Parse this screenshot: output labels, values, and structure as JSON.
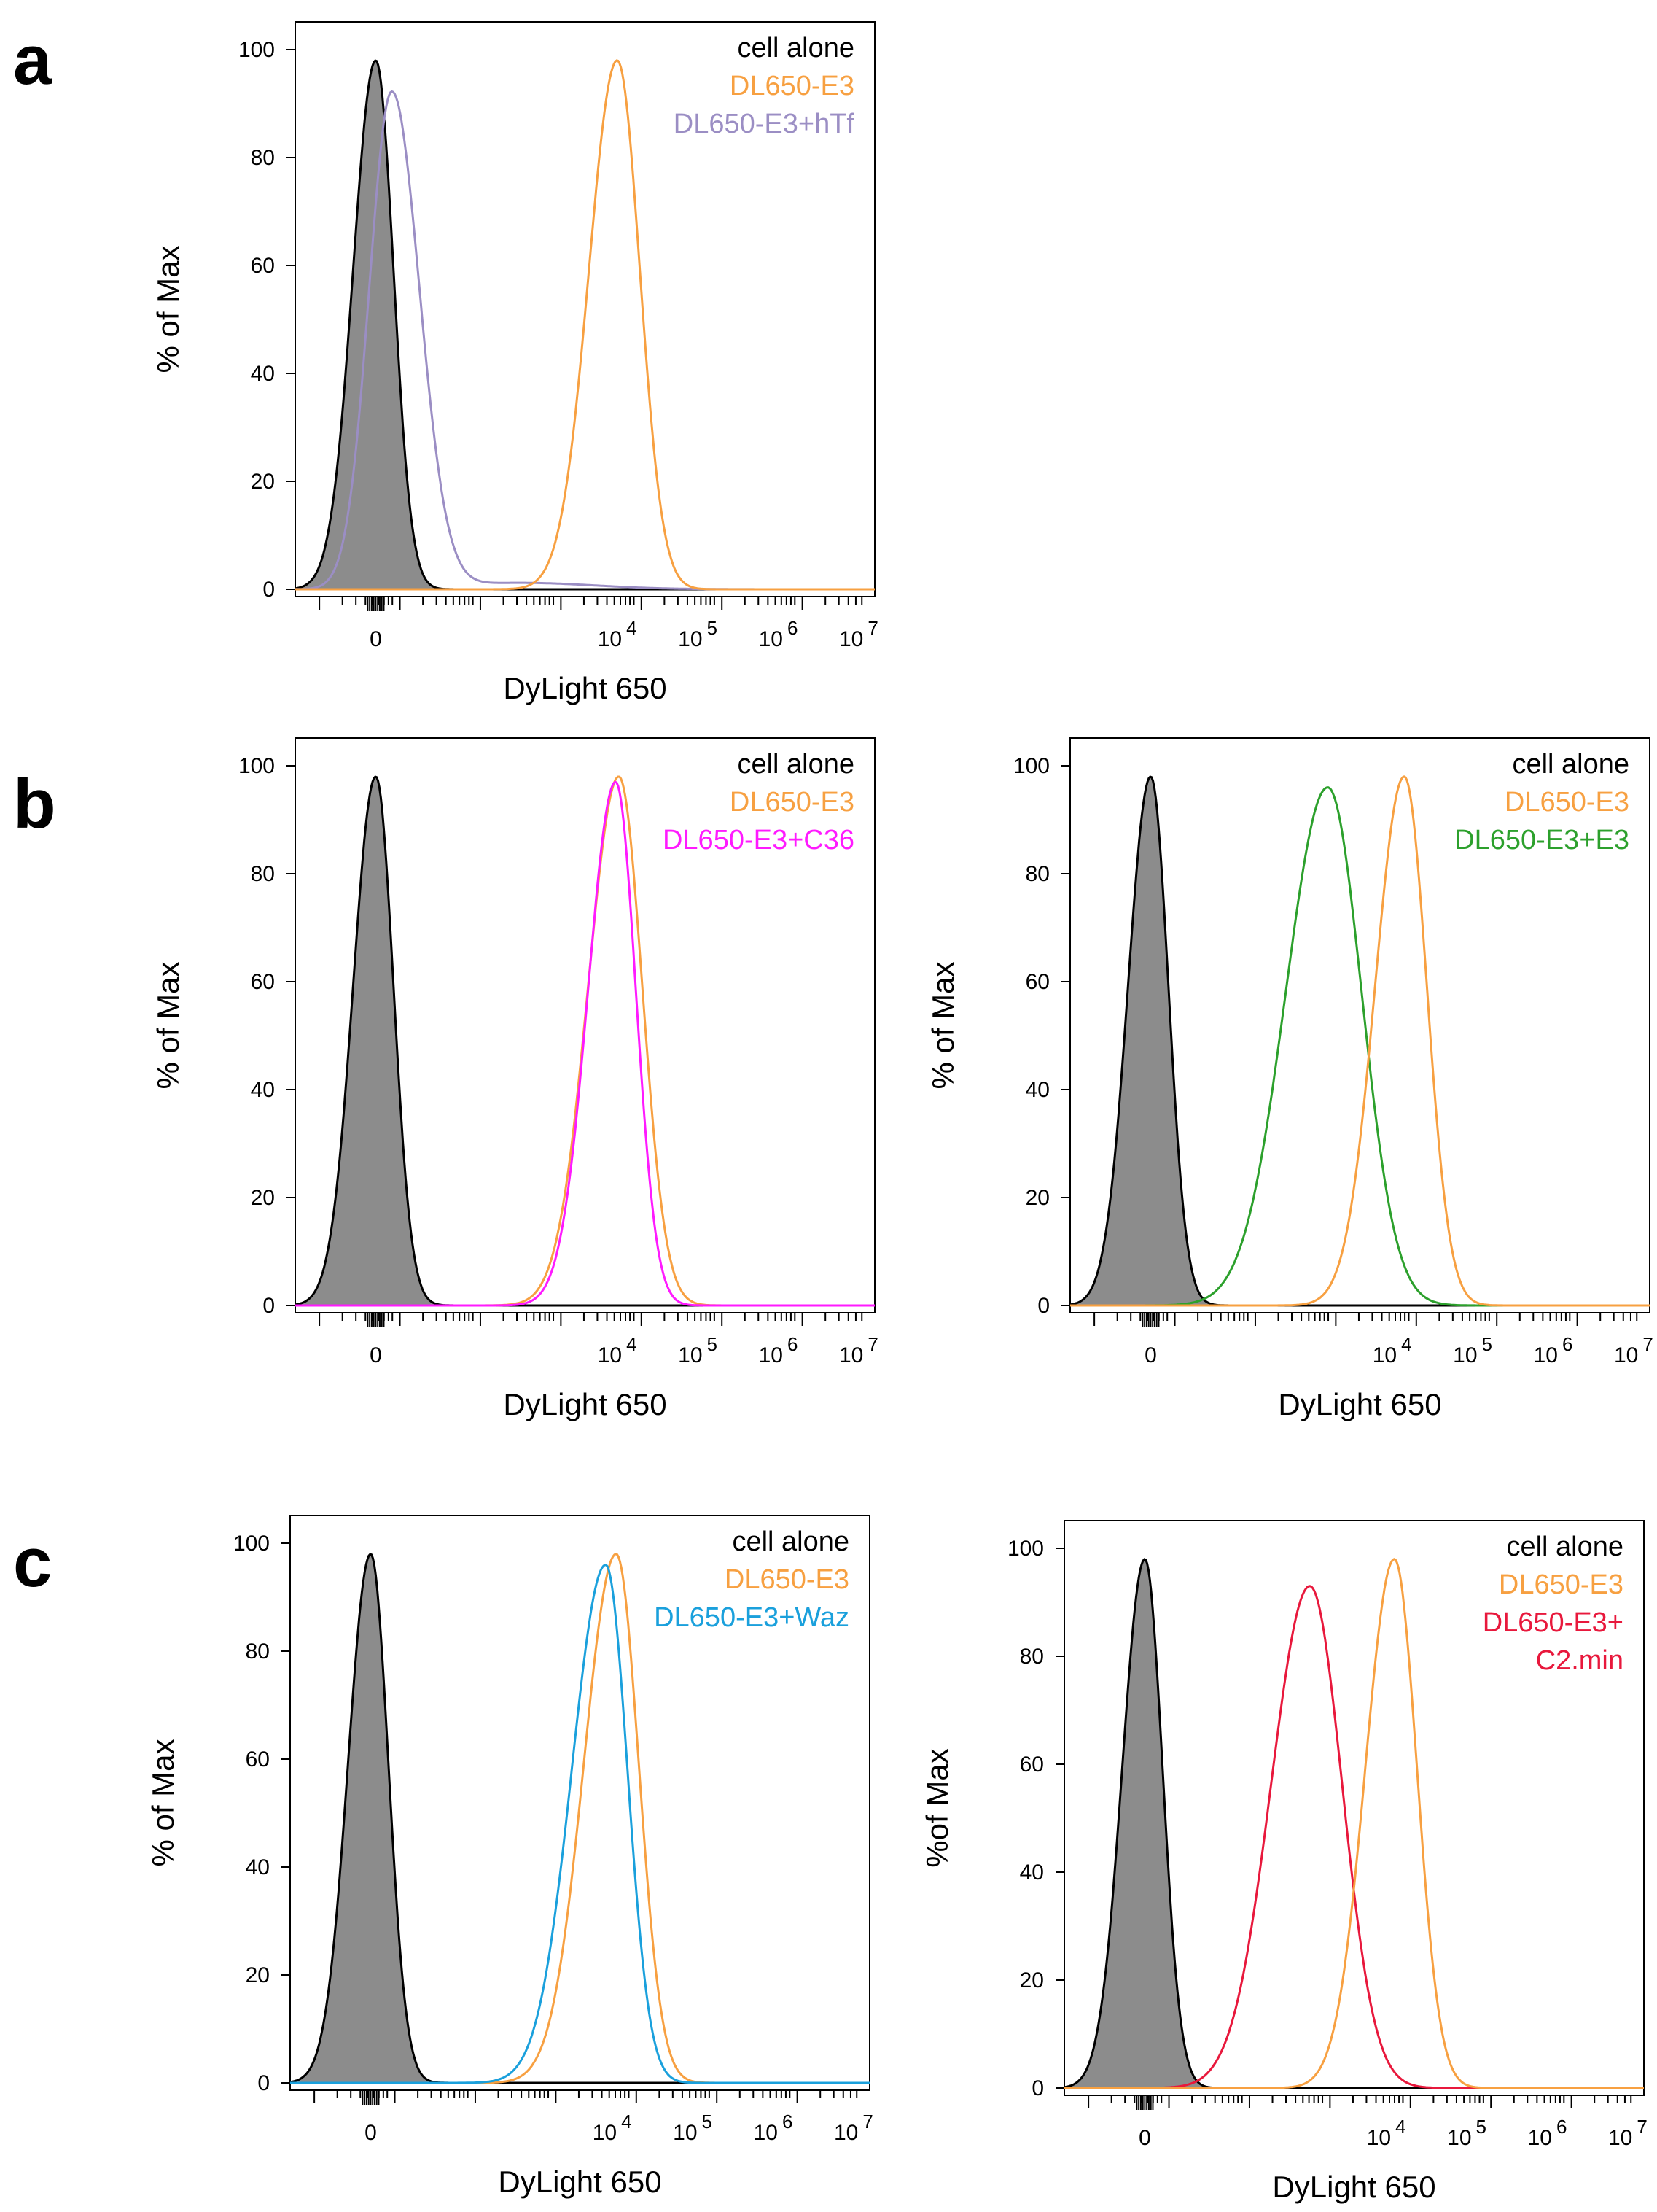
{
  "panel_letters": [
    "a",
    "b",
    "c"
  ],
  "colors": {
    "cell_alone_fill": "#8c8c8c",
    "cell_alone_line": "#000000",
    "dl650_e3": "#f7a041",
    "hTf": "#9b8ec4",
    "C36": "#ff1aff",
    "E3": "#2ca02c",
    "Waz": "#1aa0dc",
    "C2min": "#e8183c"
  },
  "chart_data": [
    {
      "id": "a",
      "type": "area",
      "xlabel": "DyLight 650",
      "ylabel": "% of Max",
      "ylim": [
        0,
        100
      ],
      "yticks": [
        "0",
        "20",
        "40",
        "60",
        "80",
        "100"
      ],
      "xticks": [
        {
          "base": "0",
          "exp": ""
        },
        {
          "base": "10",
          "exp": "4"
        },
        {
          "base": "10",
          "exp": "5"
        },
        {
          "base": "10",
          "exp": "6"
        },
        {
          "base": "10",
          "exp": "7"
        }
      ],
      "legend": [
        {
          "text": "cell alone",
          "color": "#000000"
        },
        {
          "text": "DL650-E3",
          "color": "#f7a041"
        },
        {
          "text": "DL650-E3+hTf",
          "color": "#9b8ec4"
        }
      ],
      "series": [
        {
          "name": "cell alone",
          "filled": true,
          "color": "#000000",
          "peaks": [
            {
              "x": 1.0,
              "h": 98,
              "sl": 0.28,
              "sr": 0.22
            }
          ]
        },
        {
          "name": "DL650-E3+hTf",
          "filled": false,
          "color": "#9b8ec4",
          "tail": 1.5,
          "peaks": [
            {
              "x": 1.2,
              "h": 92,
              "sl": 0.28,
              "sr": 0.34
            }
          ]
        },
        {
          "name": "DL650-E3",
          "filled": false,
          "color": "#f7a041",
          "peaks": [
            {
              "x": 4.0,
              "h": 98,
              "sl": 0.35,
              "sr": 0.28
            }
          ]
        }
      ]
    },
    {
      "id": "b1",
      "type": "area",
      "xlabel": "DyLight 650",
      "ylabel": "% of Max",
      "ylim": [
        0,
        100
      ],
      "yticks": [
        "0",
        "20",
        "40",
        "60",
        "80",
        "100"
      ],
      "xticks": [
        {
          "base": "0",
          "exp": ""
        },
        {
          "base": "10",
          "exp": "4"
        },
        {
          "base": "10",
          "exp": "5"
        },
        {
          "base": "10",
          "exp": "6"
        },
        {
          "base": "10",
          "exp": "7"
        }
      ],
      "legend": [
        {
          "text": "cell alone",
          "color": "#000000"
        },
        {
          "text": "DL650-E3",
          "color": "#f7a041"
        },
        {
          "text": "DL650-E3+C36",
          "color": "#ff1aff"
        }
      ],
      "series": [
        {
          "name": "cell alone",
          "filled": true,
          "color": "#000000",
          "peaks": [
            {
              "x": 1.0,
              "h": 98,
              "sl": 0.28,
              "sr": 0.22
            }
          ]
        },
        {
          "name": "DL650-E3",
          "filled": false,
          "color": "#f7a041",
          "peaks": [
            {
              "x": 4.02,
              "h": 98,
              "sl": 0.38,
              "sr": 0.29
            }
          ]
        },
        {
          "name": "DL650-E3+C36",
          "filled": false,
          "color": "#ff1aff",
          "peaks": [
            {
              "x": 3.98,
              "h": 97,
              "sl": 0.34,
              "sr": 0.25
            }
          ]
        }
      ]
    },
    {
      "id": "b2",
      "type": "area",
      "xlabel": "DyLight 650",
      "ylabel": "% of Max",
      "ylim": [
        0,
        100
      ],
      "yticks": [
        "0",
        "20",
        "40",
        "60",
        "80",
        "100"
      ],
      "xticks": [
        {
          "base": "0",
          "exp": ""
        },
        {
          "base": "10",
          "exp": "4"
        },
        {
          "base": "10",
          "exp": "5"
        },
        {
          "base": "10",
          "exp": "6"
        },
        {
          "base": "10",
          "exp": "7"
        }
      ],
      "legend": [
        {
          "text": "cell alone",
          "color": "#000000"
        },
        {
          "text": "DL650-E3",
          "color": "#f7a041"
        },
        {
          "text": "DL650-E3+E3",
          "color": "#2ca02c"
        }
      ],
      "series": [
        {
          "name": "cell alone",
          "filled": true,
          "color": "#000000",
          "peaks": [
            {
              "x": 1.0,
              "h": 98,
              "sl": 0.28,
              "sr": 0.22
            }
          ]
        },
        {
          "name": "DL650-E3+E3",
          "filled": false,
          "color": "#2ca02c",
          "peaks": [
            {
              "x": 3.2,
              "h": 96,
              "sl": 0.52,
              "sr": 0.42
            }
          ]
        },
        {
          "name": "DL650-E3",
          "filled": false,
          "color": "#f7a041",
          "peaks": [
            {
              "x": 4.15,
              "h": 98,
              "sl": 0.36,
              "sr": 0.28
            }
          ]
        }
      ]
    },
    {
      "id": "c1",
      "type": "area",
      "xlabel": "DyLight 650",
      "ylabel": "% of Max",
      "ylim": [
        0,
        100
      ],
      "yticks": [
        "0",
        "20",
        "40",
        "60",
        "80",
        "100"
      ],
      "xticks": [
        {
          "base": "0",
          "exp": ""
        },
        {
          "base": "10",
          "exp": "4"
        },
        {
          "base": "10",
          "exp": "5"
        },
        {
          "base": "10",
          "exp": "6"
        },
        {
          "base": "10",
          "exp": "7"
        }
      ],
      "legend": [
        {
          "text": "cell alone",
          "color": "#000000"
        },
        {
          "text": "DL650-E3",
          "color": "#f7a041"
        },
        {
          "text": "DL650-E3+Waz",
          "color": "#1aa0dc"
        }
      ],
      "series": [
        {
          "name": "cell alone",
          "filled": true,
          "color": "#000000",
          "peaks": [
            {
              "x": 1.0,
              "h": 98,
              "sl": 0.28,
              "sr": 0.22
            }
          ]
        },
        {
          "name": "DL650-E3",
          "filled": false,
          "color": "#f7a041",
          "peaks": [
            {
              "x": 4.05,
              "h": 98,
              "sl": 0.4,
              "sr": 0.28
            }
          ]
        },
        {
          "name": "DL650-E3+Waz",
          "filled": false,
          "color": "#1aa0dc",
          "peaks": [
            {
              "x": 3.92,
              "h": 96,
              "sl": 0.42,
              "sr": 0.27
            }
          ]
        }
      ]
    },
    {
      "id": "c2",
      "type": "area",
      "xlabel": "DyLight 650",
      "ylabel": "%of Max",
      "ylim": [
        0,
        100
      ],
      "yticks": [
        "0",
        "20",
        "40",
        "60",
        "80",
        "100"
      ],
      "xticks": [
        {
          "base": "0",
          "exp": ""
        },
        {
          "base": "10",
          "exp": "4"
        },
        {
          "base": "10",
          "exp": "5"
        },
        {
          "base": "10",
          "exp": "6"
        },
        {
          "base": "10",
          "exp": "7"
        }
      ],
      "legend": [
        {
          "text": "cell alone",
          "color": "#000000"
        },
        {
          "text": "DL650-E3",
          "color": "#f7a041"
        },
        {
          "text": "DL650-E3+",
          "color": "#e8183c"
        },
        {
          "text": "C2.min",
          "color": "#e8183c"
        }
      ],
      "series": [
        {
          "name": "cell alone",
          "filled": true,
          "color": "#000000",
          "peaks": [
            {
              "x": 1.0,
              "h": 98,
              "sl": 0.28,
              "sr": 0.22
            }
          ]
        },
        {
          "name": "DL650-E3+C2.min",
          "filled": false,
          "color": "#e8183c",
          "peaks": [
            {
              "x": 3.05,
              "h": 93,
              "sl": 0.48,
              "sr": 0.4
            }
          ]
        },
        {
          "name": "DL650-E3",
          "filled": false,
          "color": "#f7a041",
          "peaks": [
            {
              "x": 4.1,
              "h": 98,
              "sl": 0.36,
              "sr": 0.28
            }
          ]
        }
      ]
    }
  ]
}
